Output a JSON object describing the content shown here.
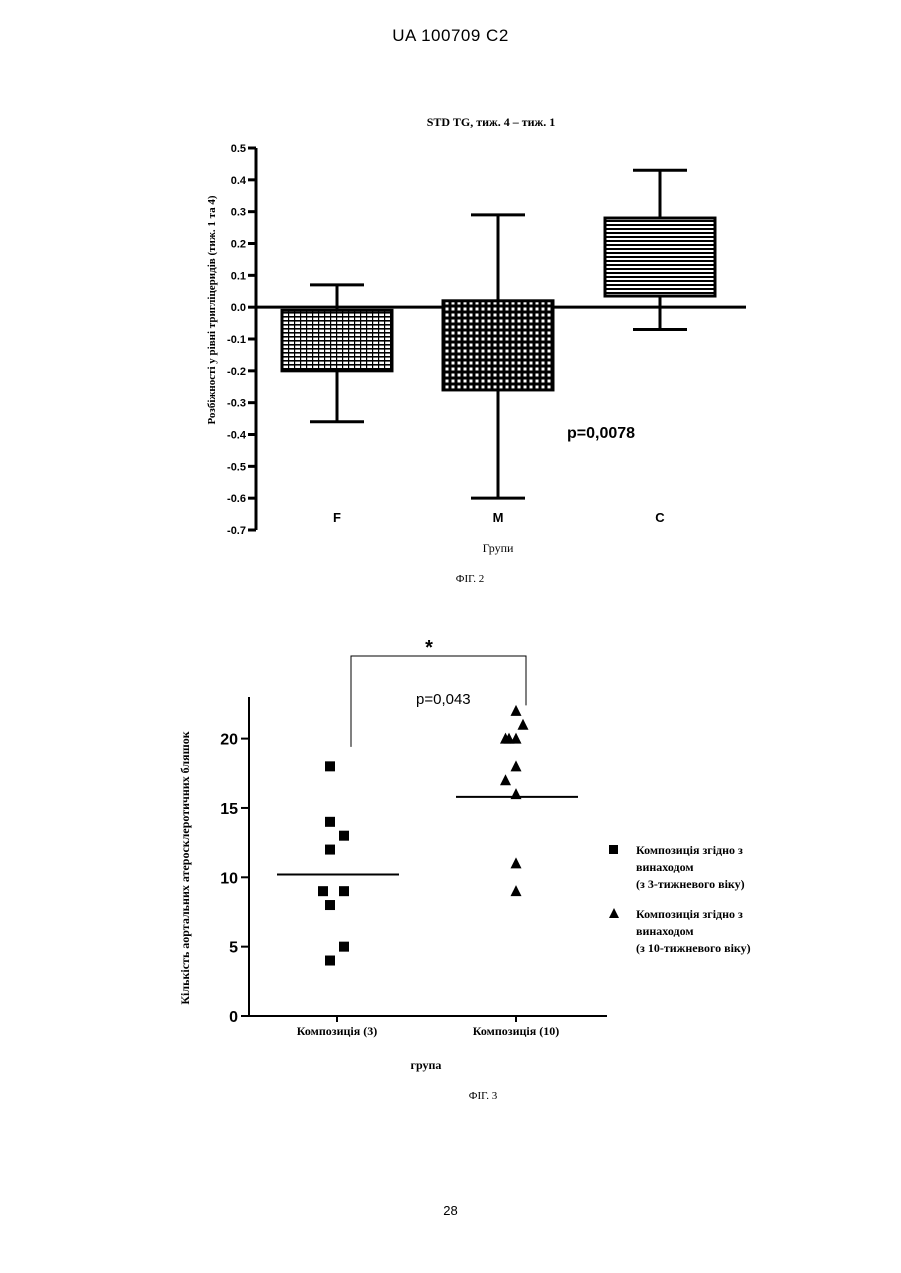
{
  "header": {
    "text": "UA   100709   C2"
  },
  "page_number": "28",
  "figure2": {
    "caption": "ФІГ. 2"
  },
  "figure3": {
    "caption": "ФІГ. 3"
  },
  "chart_data": [
    {
      "type": "box",
      "title": "STD TG, тиж. 4 – тиж. 1",
      "xlabel": "Групи",
      "ylabel": "Розбіжності у рівні тригліцеридів (тиж. 1 та 4)",
      "ylim": [
        -0.7,
        0.5
      ],
      "yticks": [
        "0.5",
        "0.4",
        "0.3",
        "0.2",
        "0.1",
        "0.0",
        "-0.1",
        "-0.2",
        "-0.3",
        "-0.4",
        "-0.5",
        "-0.6",
        "-0.7"
      ],
      "ytick_values": [
        0.5,
        0.4,
        0.3,
        0.2,
        0.1,
        0.0,
        -0.1,
        -0.2,
        -0.3,
        -0.4,
        -0.5,
        -0.6,
        -0.7
      ],
      "groups": [
        {
          "label": "F",
          "min": -0.36,
          "q1": -0.2,
          "q3": -0.01,
          "max": 0.07,
          "pattern": "grid"
        },
        {
          "label": "M",
          "min": -0.6,
          "q1": -0.26,
          "q3": 0.02,
          "max": 0.29,
          "pattern": "dots"
        },
        {
          "label": "C",
          "min": -0.07,
          "q1": 0.035,
          "q3": 0.28,
          "max": 0.43,
          "pattern": "hlines"
        }
      ],
      "annotation": "p=0,0078",
      "grid": false
    },
    {
      "type": "scatter",
      "xlabel": "група",
      "ylabel": "Кількість аортальних атеросклеротичних бляшок",
      "ylim": [
        0,
        23
      ],
      "yticks": [
        "0",
        "5",
        "10",
        "15",
        "20"
      ],
      "ytick_values": [
        0,
        5,
        10,
        15,
        20
      ],
      "categories": [
        "Композиція (3)",
        "Композиція (10)"
      ],
      "series": [
        {
          "name": "Композиція згідно з винаходом (з 3-тижневого віку)",
          "legend_lines": [
            "Композиція згідно з",
            "винаходом",
            "(з 3-тижневого віку)"
          ],
          "marker": "square",
          "mean": 10.2,
          "points": [
            [
              -0.1,
              18
            ],
            [
              -0.1,
              14
            ],
            [
              0.1,
              13
            ],
            [
              -0.1,
              12
            ],
            [
              -0.2,
              9
            ],
            [
              0.1,
              9
            ],
            [
              -0.1,
              8
            ],
            [
              0.1,
              5
            ],
            [
              -0.1,
              4
            ]
          ]
        },
        {
          "name": "Композиція згідно з винаходом (з 10-тижневого віку)",
          "legend_lines": [
            "Композиція згідно з",
            "винаходом",
            "(з 10-тижневого віку)"
          ],
          "marker": "triangle",
          "mean": 15.8,
          "points": [
            [
              0.0,
              22
            ],
            [
              0.1,
              21
            ],
            [
              -0.15,
              20
            ],
            [
              -0.1,
              20
            ],
            [
              0.0,
              20
            ],
            [
              0.0,
              18
            ],
            [
              -0.15,
              17
            ],
            [
              0.0,
              16
            ],
            [
              0.0,
              11
            ],
            [
              0.0,
              9
            ]
          ]
        }
      ],
      "significance": {
        "symbol": "*",
        "text": "p=0,043"
      },
      "legend_position": "right",
      "grid": false
    }
  ]
}
